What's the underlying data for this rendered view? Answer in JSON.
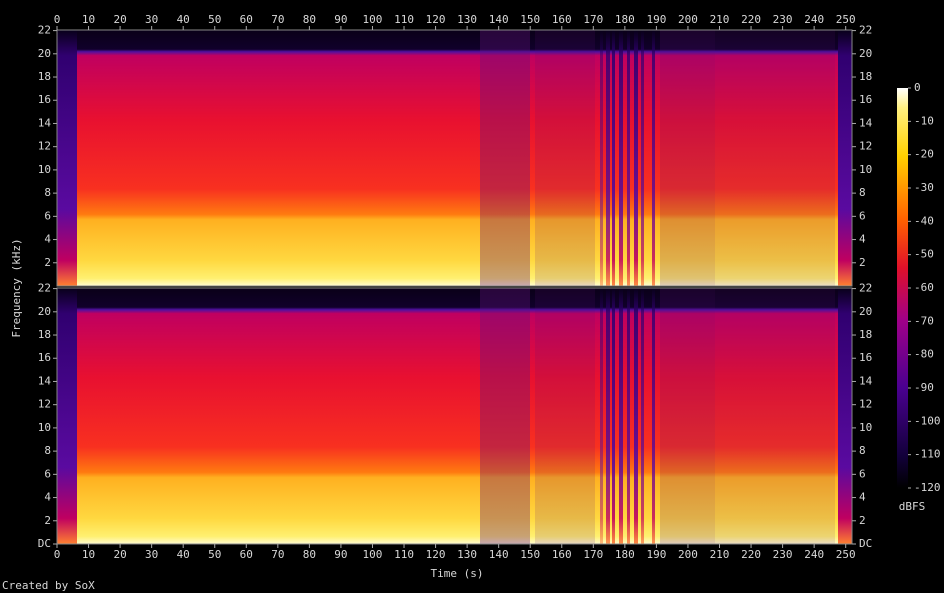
{
  "chart_data": {
    "type": "spectrogram",
    "xlabel": "Time (s)",
    "ylabel": "Frequency (kHz)",
    "colorbar_label": "dBFS",
    "credit": "Created by SoX",
    "xlim": [
      0,
      252
    ],
    "xticks": [
      0,
      10,
      20,
      30,
      40,
      50,
      60,
      70,
      80,
      90,
      100,
      110,
      120,
      130,
      140,
      150,
      160,
      170,
      180,
      190,
      200,
      210,
      220,
      230,
      240,
      250
    ],
    "channels": [
      {
        "ylim": [
          0,
          22.05
        ],
        "yticks": [
          2,
          4,
          6,
          8,
          10,
          12,
          14,
          16,
          18,
          20,
          22
        ]
      },
      {
        "ylim": [
          0,
          22.05
        ],
        "yticks": [
          {
            "value": 0,
            "label": "DC"
          },
          2,
          4,
          6,
          8,
          10,
          12,
          14,
          16,
          18,
          20,
          22
        ]
      }
    ],
    "clim": [
      -120,
      0
    ],
    "cticks": [
      0,
      -10,
      -20,
      -30,
      -40,
      -50,
      -60,
      -70,
      -80,
      -90,
      -100,
      -110,
      -120
    ]
  }
}
